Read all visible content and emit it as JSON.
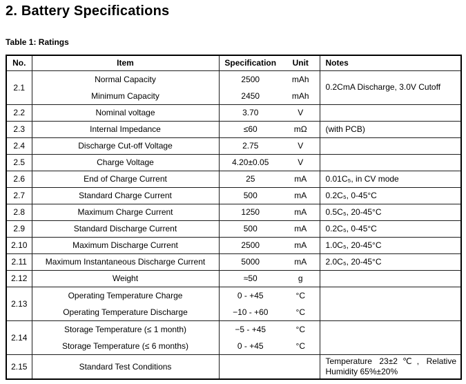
{
  "colors": {
    "text": "#000000",
    "border": "#000000",
    "background": "#ffffff"
  },
  "page": {
    "title": "2. Battery Specifications",
    "table_caption": "Table 1: Ratings"
  },
  "table": {
    "headers": {
      "no": "No.",
      "item": "Item",
      "spec": "Specification",
      "unit": "Unit",
      "notes": "Notes"
    },
    "rows": [
      {
        "no": "2.1",
        "items": [
          "Normal Capacity",
          "Minimum Capacity"
        ],
        "specs": [
          "2500",
          "2450"
        ],
        "units": [
          "mAh",
          "mAh"
        ],
        "notes": "0.2CmA Discharge, 3.0V Cutoff"
      },
      {
        "no": "2.2",
        "items": [
          "Nominal voltage"
        ],
        "specs": [
          "3.70"
        ],
        "units": [
          "V"
        ],
        "notes": ""
      },
      {
        "no": "2.3",
        "items": [
          "Internal Impedance"
        ],
        "specs": [
          "≤60"
        ],
        "units": [
          "mΩ"
        ],
        "notes": "(with PCB)"
      },
      {
        "no": "2.4",
        "items": [
          "Discharge Cut-off Voltage"
        ],
        "specs": [
          "2.75"
        ],
        "units": [
          "V"
        ],
        "notes": ""
      },
      {
        "no": "2.5",
        "items": [
          "Charge Voltage"
        ],
        "specs": [
          "4.20±0.05"
        ],
        "units": [
          "V"
        ],
        "notes": ""
      },
      {
        "no": "2.6",
        "items": [
          "End of Charge Current"
        ],
        "specs": [
          "25"
        ],
        "units": [
          "mA"
        ],
        "notes": "0.01C₅, in CV mode"
      },
      {
        "no": "2.7",
        "items": [
          "Standard Charge Current"
        ],
        "specs": [
          "500"
        ],
        "units": [
          "mA"
        ],
        "notes": "0.2C₅, 0-45°C"
      },
      {
        "no": "2.8",
        "items": [
          "Maximum Charge Current"
        ],
        "specs": [
          "1250"
        ],
        "units": [
          "mA"
        ],
        "notes": "0.5C₅, 20-45°C"
      },
      {
        "no": "2.9",
        "items": [
          "Standard Discharge Current"
        ],
        "specs": [
          "500"
        ],
        "units": [
          "mA"
        ],
        "notes": "0.2C₅, 0-45°C"
      },
      {
        "no": "2.10",
        "items": [
          "Maximum Discharge Current"
        ],
        "specs": [
          "2500"
        ],
        "units": [
          "mA"
        ],
        "notes": "1.0C₅, 20-45°C"
      },
      {
        "no": "2.11",
        "items": [
          "Maximum Instantaneous Discharge Current"
        ],
        "specs": [
          "5000"
        ],
        "units": [
          "mA"
        ],
        "notes": "2.0C₅, 20-45°C"
      },
      {
        "no": "2.12",
        "items": [
          "Weight"
        ],
        "specs": [
          "≈50"
        ],
        "units": [
          "g"
        ],
        "notes": ""
      },
      {
        "no": "2.13",
        "items": [
          "Operating Temperature Charge",
          "Operating Temperature Discharge"
        ],
        "specs": [
          "0 - +45",
          "−10 - +60"
        ],
        "units": [
          "°C",
          "°C"
        ],
        "notes": ""
      },
      {
        "no": "2.14",
        "items": [
          "Storage Temperature (≤ 1 month)",
          "Storage Temperature (≤ 6 months)"
        ],
        "specs": [
          "−5 - +45",
          "0 - +45"
        ],
        "units": [
          "°C",
          "°C"
        ],
        "notes": ""
      },
      {
        "no": "2.15",
        "items": [
          "Standard Test Conditions"
        ],
        "specs": [
          ""
        ],
        "units": [
          ""
        ],
        "notes": "Temperature 23±2℃, Relative Humidity 65%±20%"
      }
    ]
  }
}
